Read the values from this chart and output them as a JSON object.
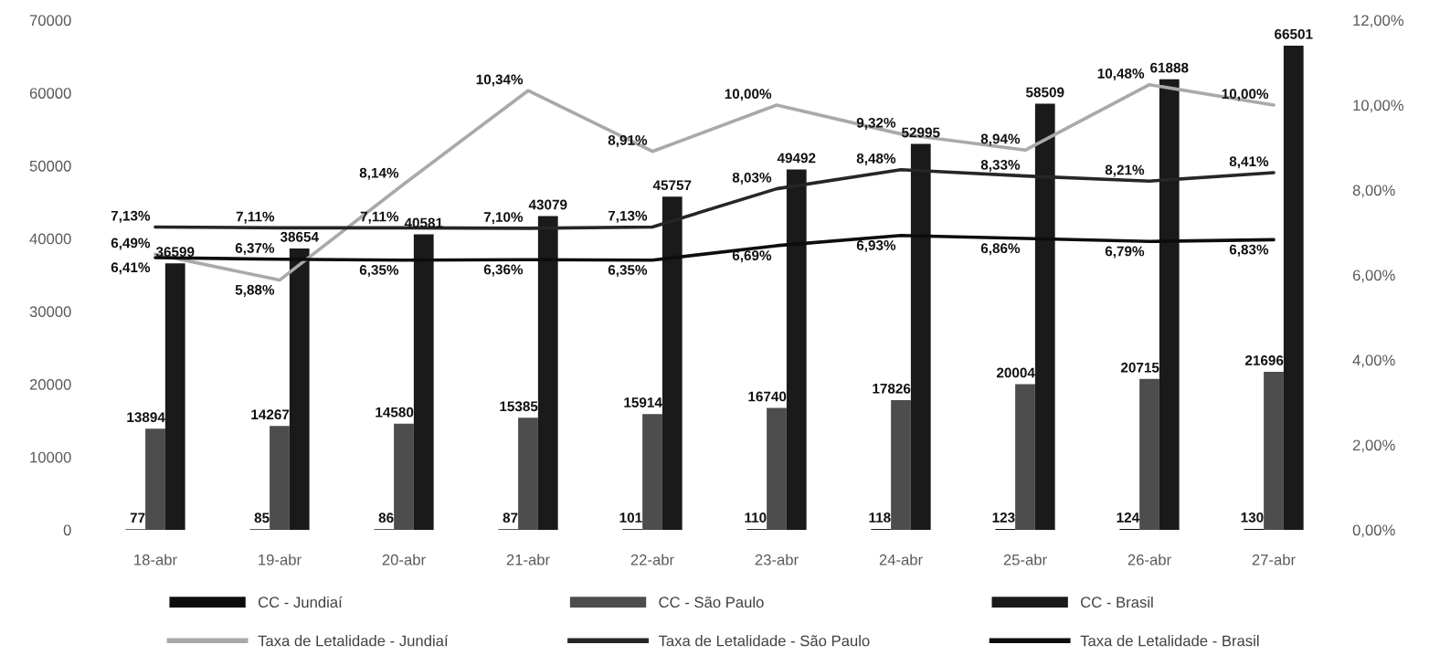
{
  "chart_data": {
    "type": "bar",
    "categories": [
      "18-abr",
      "19-abr",
      "20-abr",
      "21-abr",
      "22-abr",
      "23-abr",
      "24-abr",
      "25-abr",
      "26-abr",
      "27-abr"
    ],
    "series": [
      {
        "name": "CC - Jundiaí",
        "color": "#0d0d0d",
        "values": [
          77,
          85,
          86,
          87,
          101,
          110,
          118,
          123,
          124,
          130
        ],
        "value_labels": [
          "77",
          "85",
          "86",
          "87",
          "101",
          "110",
          "118",
          "123",
          "124",
          "130"
        ]
      },
      {
        "name": "CC - São Paulo",
        "color": "#4d4d4d",
        "values": [
          13894,
          14267,
          14580,
          15385,
          15914,
          16740,
          17826,
          20004,
          20715,
          21696
        ],
        "value_labels": [
          "13894",
          "14267",
          "14580",
          "15385",
          "15914",
          "16740",
          "17826",
          "20004",
          "20715",
          "21696"
        ]
      },
      {
        "name": "CC - Brasil",
        "color": "#1a1a1a",
        "values": [
          36599,
          38654,
          40581,
          43079,
          45757,
          49492,
          52995,
          58509,
          61888,
          66501
        ],
        "value_labels": [
          "36599",
          "38654",
          "40581",
          "43079",
          "45757",
          "49492",
          "52995",
          "58509",
          "61888",
          "66501"
        ]
      },
      {
        "name": "Taxa de Letalidade - Jundiaí",
        "type": "line",
        "axis": "y2",
        "color": "#a9a9a9",
        "values": [
          6.49,
          5.88,
          8.14,
          10.34,
          8.91,
          10.0,
          9.32,
          8.94,
          10.48,
          10.0
        ],
        "value_labels": [
          "6,49%",
          "5,88%",
          "8,14%",
          "10,34%",
          "8,91%",
          "10,00%",
          "9,32%",
          "8,94%",
          "10,48%",
          "10,00%"
        ]
      },
      {
        "name": "Taxa de Letalidade - São Paulo",
        "type": "line",
        "axis": "y2",
        "color": "#262626",
        "values": [
          7.13,
          7.11,
          7.11,
          7.1,
          7.13,
          8.03,
          8.48,
          8.33,
          8.21,
          8.41
        ],
        "value_labels": [
          "7,13%",
          "7,11%",
          "7,11%",
          "7,10%",
          "7,13%",
          "8,03%",
          "8,48%",
          "8,33%",
          "8,21%",
          "8,41%"
        ]
      },
      {
        "name": "Taxa de Letalidade - Brasil",
        "type": "line",
        "axis": "y2",
        "color": "#0d0d0d",
        "values": [
          6.41,
          6.37,
          6.35,
          6.36,
          6.35,
          6.69,
          6.93,
          6.86,
          6.79,
          6.83
        ],
        "value_labels": [
          "6,41%",
          "6,37%",
          "6,35%",
          "6,36%",
          "6,35%",
          "6,69%",
          "6,93%",
          "6,86%",
          "6,79%",
          "6,83%"
        ]
      }
    ],
    "ylim": [
      0,
      70000
    ],
    "yticks": [
      0,
      10000,
      20000,
      30000,
      40000,
      50000,
      60000,
      70000
    ],
    "y2lim": [
      0,
      12
    ],
    "y2ticks": [
      {
        "value": 0,
        "label": "0,00%"
      },
      {
        "value": 2,
        "label": "2,00%"
      },
      {
        "value": 4,
        "label": "4,00%"
      },
      {
        "value": 6,
        "label": "6,00%"
      },
      {
        "value": 8,
        "label": "8,00%"
      },
      {
        "value": 10,
        "label": "10,00%"
      },
      {
        "value": 12,
        "label": "12,00%"
      }
    ],
    "legend": "bottom"
  }
}
